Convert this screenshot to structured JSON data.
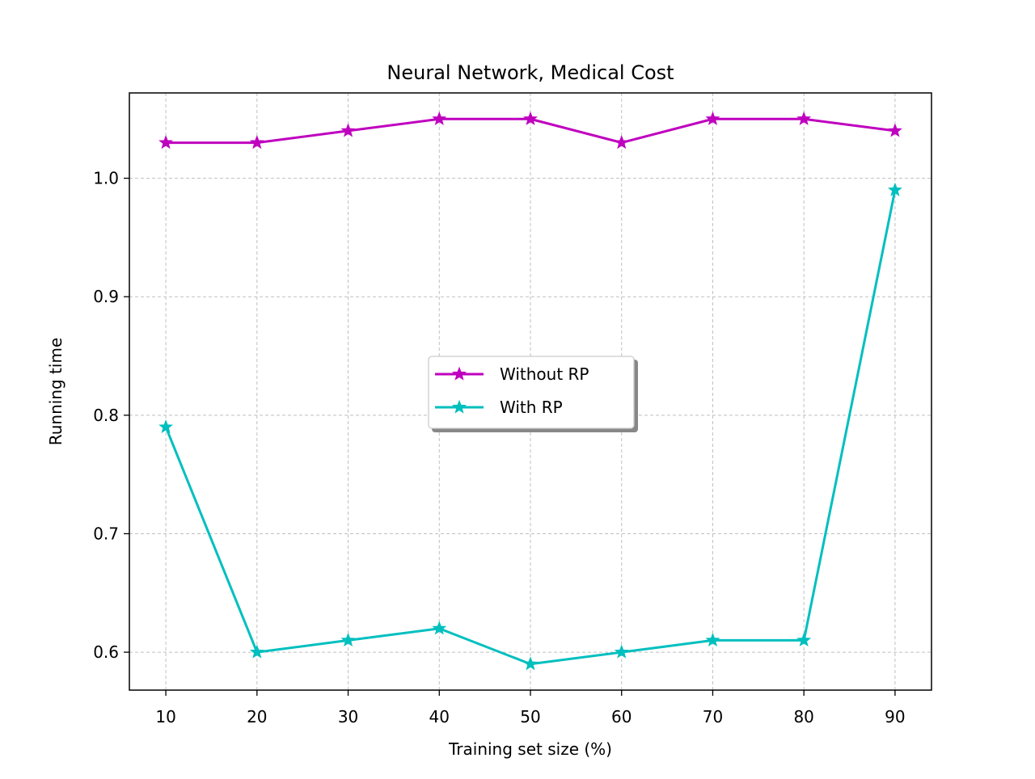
{
  "chart_data": {
    "type": "line",
    "title": "Neural Network, Medical Cost",
    "xlabel": "Training set size (%)",
    "ylabel": "Running time",
    "x": [
      10,
      20,
      30,
      40,
      50,
      60,
      70,
      80,
      90
    ],
    "xticks": [
      "10",
      "20",
      "30",
      "40",
      "50",
      "60",
      "70",
      "80",
      "90"
    ],
    "yticks": [
      "0.6",
      "0.7",
      "0.8",
      "0.9",
      "1.0"
    ],
    "ytick_values": [
      0.6,
      0.7,
      0.8,
      0.9,
      1.0
    ],
    "xlim": [
      6,
      94
    ],
    "ylim": [
      0.568,
      1.072
    ],
    "grid": true,
    "legend_position": "center",
    "marker": "star",
    "series": [
      {
        "name": "Without RP",
        "color": "#bf00bf",
        "values": [
          1.03,
          1.03,
          1.04,
          1.05,
          1.05,
          1.03,
          1.05,
          1.05,
          1.04
        ]
      },
      {
        "name": "With RP",
        "color": "#00bfbf",
        "values": [
          0.79,
          0.6,
          0.61,
          0.62,
          0.59,
          0.6,
          0.61,
          0.61,
          0.99
        ]
      }
    ]
  }
}
